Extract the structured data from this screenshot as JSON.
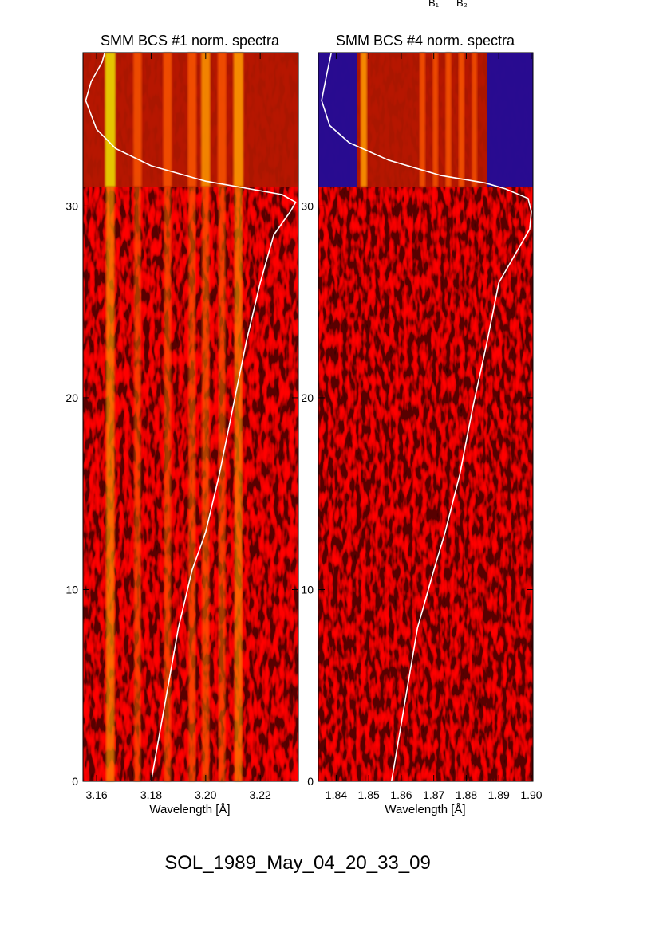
{
  "header_fragment": {
    "b1": "B₁",
    "b2": "B₂"
  },
  "caption": "SOL_1989_May_04_20_33_09",
  "chart_data": [
    {
      "type": "heatmap",
      "title": "SMM BCS #1 norm. spectra",
      "xlabel": "Wavelength [Å]",
      "ylabel": "",
      "xlim": [
        3.155,
        3.234
      ],
      "ylim": [
        0,
        38
      ],
      "xticks": [
        3.16,
        3.18,
        3.2,
        3.22
      ],
      "xtick_labels": [
        "3.16",
        "3.18",
        "3.20",
        "3.22"
      ],
      "yticks": [
        0,
        10,
        20,
        30
      ],
      "ytick_labels": [
        "0",
        "10",
        "20",
        "30"
      ],
      "transition_y": 31,
      "colormap": [
        "#000000",
        "#1a0aa0",
        "#c81e00",
        "#ff6a00",
        "#ffb000",
        "#f0f000"
      ],
      "bright_lines": [
        {
          "x": 3.165,
          "strength": 1.0
        },
        {
          "x": 3.175,
          "strength": 0.55
        },
        {
          "x": 3.186,
          "strength": 0.6
        },
        {
          "x": 3.195,
          "strength": 0.62
        },
        {
          "x": 3.2,
          "strength": 0.7
        },
        {
          "x": 3.206,
          "strength": 0.6
        },
        {
          "x": 3.212,
          "strength": 0.85
        }
      ],
      "lightcurve": {
        "color": "#ffffff",
        "x": [
          3.18,
          3.185,
          3.19,
          3.195,
          3.2,
          3.205,
          3.21,
          3.215,
          3.22,
          3.225,
          3.231,
          3.233,
          3.228,
          3.2,
          3.18,
          3.167,
          3.16,
          3.156,
          3.158,
          3.162,
          3.163
        ],
        "y": [
          0,
          4,
          8,
          11,
          13,
          16,
          19.5,
          23,
          26,
          28.5,
          29.7,
          30.2,
          30.6,
          31.3,
          32.1,
          33,
          34,
          35.5,
          36.5,
          37.5,
          38
        ]
      }
    },
    {
      "type": "heatmap",
      "title": "SMM BCS #4 norm. spectra",
      "xlabel": "Wavelength [Å]",
      "ylabel": "",
      "xlim": [
        1.8345,
        1.9005
      ],
      "ylim": [
        0,
        38
      ],
      "xticks": [
        1.84,
        1.85,
        1.86,
        1.87,
        1.88,
        1.89,
        1.9
      ],
      "xtick_labels": [
        "1.84",
        "1.85",
        "1.86",
        "1.87",
        "1.88",
        "1.89",
        "1.90"
      ],
      "yticks": [
        0,
        10,
        20,
        30
      ],
      "ytick_labels": [
        "0",
        "10",
        "20",
        "30"
      ],
      "transition_y": 31,
      "colormap": [
        "#000000",
        "#1a0aa0",
        "#c81e00",
        "#ff6a00",
        "#ffb000",
        "#f0f000"
      ],
      "bright_lines": [
        {
          "x": 1.8485,
          "strength": 0.8
        },
        {
          "x": 1.8665,
          "strength": 0.55
        },
        {
          "x": 1.8705,
          "strength": 0.5
        },
        {
          "x": 1.8745,
          "strength": 0.6
        },
        {
          "x": 1.8785,
          "strength": 0.6
        },
        {
          "x": 1.8825,
          "strength": 0.45
        }
      ],
      "lightcurve": {
        "color": "#ffffff",
        "x": [
          1.857,
          1.861,
          1.865,
          1.87,
          1.8735,
          1.878,
          1.882,
          1.8865,
          1.89,
          1.8995,
          1.9,
          1.899,
          1.892,
          1.886,
          1.872,
          1.856,
          1.844,
          1.838,
          1.8355,
          1.837,
          1.8385
        ],
        "y": [
          0,
          4,
          8,
          11,
          13,
          16,
          19.5,
          23,
          26,
          28.8,
          29.7,
          30.4,
          30.9,
          31.2,
          31.6,
          32.4,
          33.3,
          34.2,
          35.5,
          36.8,
          38
        ]
      }
    }
  ]
}
